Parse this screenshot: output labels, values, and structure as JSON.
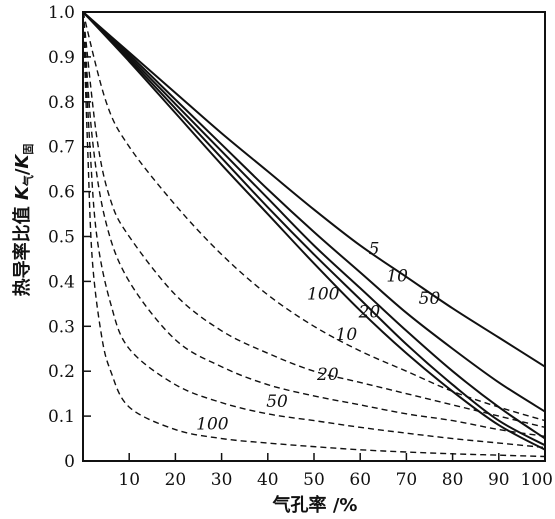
{
  "chart_data": {
    "type": "line",
    "xlabel": "气孔率 /%",
    "ylabel": {
      "main": "热导率比值 ",
      "k1": "K",
      "sub1": "气",
      "slash": "/",
      "k2": "K",
      "sub2": "固"
    },
    "xlim": [
      0,
      100
    ],
    "ylim": [
      0,
      1.0
    ],
    "x_ticks": [
      "10",
      "20",
      "30",
      "40",
      "50",
      "60",
      "70",
      "80",
      "90",
      "100"
    ],
    "y_ticks": [
      "0",
      "0.1",
      "0.2",
      "0.3",
      "0.4",
      "0.5",
      "0.6",
      "0.7",
      "0.8",
      "0.9",
      "1.0"
    ],
    "grid": false,
    "series": [
      {
        "name": "5",
        "style": "solid",
        "x": [
          0,
          10,
          20,
          30,
          40,
          50,
          60,
          70,
          80,
          90,
          100
        ],
        "y": [
          1.0,
          0.91,
          0.82,
          0.73,
          0.645,
          0.56,
          0.48,
          0.41,
          0.34,
          0.275,
          0.21
        ]
      },
      {
        "name": "10",
        "style": "solid",
        "x": [
          0,
          10,
          20,
          30,
          40,
          50,
          60,
          70,
          80,
          90,
          100
        ],
        "y": [
          1.0,
          0.905,
          0.805,
          0.705,
          0.605,
          0.51,
          0.42,
          0.33,
          0.25,
          0.175,
          0.11
        ]
      },
      {
        "name": "50",
        "style": "solid",
        "x": [
          0,
          10,
          20,
          30,
          40,
          50,
          60,
          70,
          80,
          90,
          100
        ],
        "y": [
          1.0,
          0.9,
          0.795,
          0.69,
          0.585,
          0.48,
          0.385,
          0.29,
          0.2,
          0.12,
          0.05
        ]
      },
      {
        "name": "20",
        "style": "solid",
        "x": [
          0,
          10,
          20,
          30,
          40,
          50,
          60,
          70,
          80,
          90,
          100
        ],
        "y": [
          1.0,
          0.895,
          0.785,
          0.675,
          0.565,
          0.46,
          0.36,
          0.26,
          0.17,
          0.09,
          0.035
        ]
      },
      {
        "name": "100",
        "style": "solid",
        "x": [
          0,
          10,
          20,
          30,
          40,
          50,
          60,
          70,
          80,
          90,
          100
        ],
        "y": [
          1.0,
          0.89,
          0.775,
          0.66,
          0.55,
          0.44,
          0.335,
          0.24,
          0.155,
          0.08,
          0.025
        ]
      },
      {
        "name": "10",
        "style": "dashed",
        "x": [
          0,
          5,
          10,
          20,
          30,
          40,
          50,
          60,
          70,
          80,
          90,
          100
        ],
        "y": [
          1.0,
          0.8,
          0.7,
          0.57,
          0.46,
          0.37,
          0.3,
          0.245,
          0.2,
          0.155,
          0.12,
          0.09
        ]
      },
      {
        "name": "20",
        "style": "dashed",
        "x": [
          0,
          3,
          6,
          10,
          20,
          30,
          40,
          50,
          60,
          70,
          80,
          90,
          100
        ],
        "y": [
          1.0,
          0.72,
          0.58,
          0.5,
          0.37,
          0.29,
          0.24,
          0.2,
          0.175,
          0.15,
          0.125,
          0.1,
          0.075
        ]
      },
      {
        "name": "",
        "style": "dashed",
        "x": [
          0,
          2,
          5,
          10,
          20,
          30,
          40,
          50,
          60,
          70,
          80,
          90,
          100
        ],
        "y": [
          1.0,
          0.72,
          0.53,
          0.4,
          0.27,
          0.21,
          0.17,
          0.145,
          0.125,
          0.105,
          0.09,
          0.07,
          0.055
        ]
      },
      {
        "name": "50",
        "style": "dashed",
        "x": [
          0,
          1.5,
          3,
          6,
          10,
          20,
          30,
          40,
          50,
          60,
          70,
          80,
          90,
          100
        ],
        "y": [
          1.0,
          0.7,
          0.5,
          0.35,
          0.25,
          0.17,
          0.13,
          0.105,
          0.09,
          0.075,
          0.062,
          0.05,
          0.04,
          0.03
        ]
      },
      {
        "name": "100",
        "style": "dashed",
        "x": [
          0,
          1,
          2,
          4,
          6,
          10,
          20,
          30,
          40,
          50,
          60,
          70,
          80,
          90,
          100
        ],
        "y": [
          1.0,
          0.7,
          0.45,
          0.28,
          0.2,
          0.12,
          0.07,
          0.05,
          0.04,
          0.032,
          0.025,
          0.02,
          0.016,
          0.013,
          0.01
        ]
      }
    ],
    "curve_labels": [
      {
        "text": "5",
        "x": 63,
        "y": 0.46
      },
      {
        "text": "10",
        "x": 68,
        "y": 0.4
      },
      {
        "text": "50",
        "x": 75,
        "y": 0.35
      },
      {
        "text": "20",
        "x": 62,
        "y": 0.32
      },
      {
        "text": "100",
        "x": 52,
        "y": 0.36
      },
      {
        "text": "10",
        "x": 57,
        "y": 0.27
      },
      {
        "text": "20",
        "x": 53,
        "y": 0.18
      },
      {
        "text": "50",
        "x": 42,
        "y": 0.12
      },
      {
        "text": "100",
        "x": 28,
        "y": 0.07
      }
    ]
  }
}
